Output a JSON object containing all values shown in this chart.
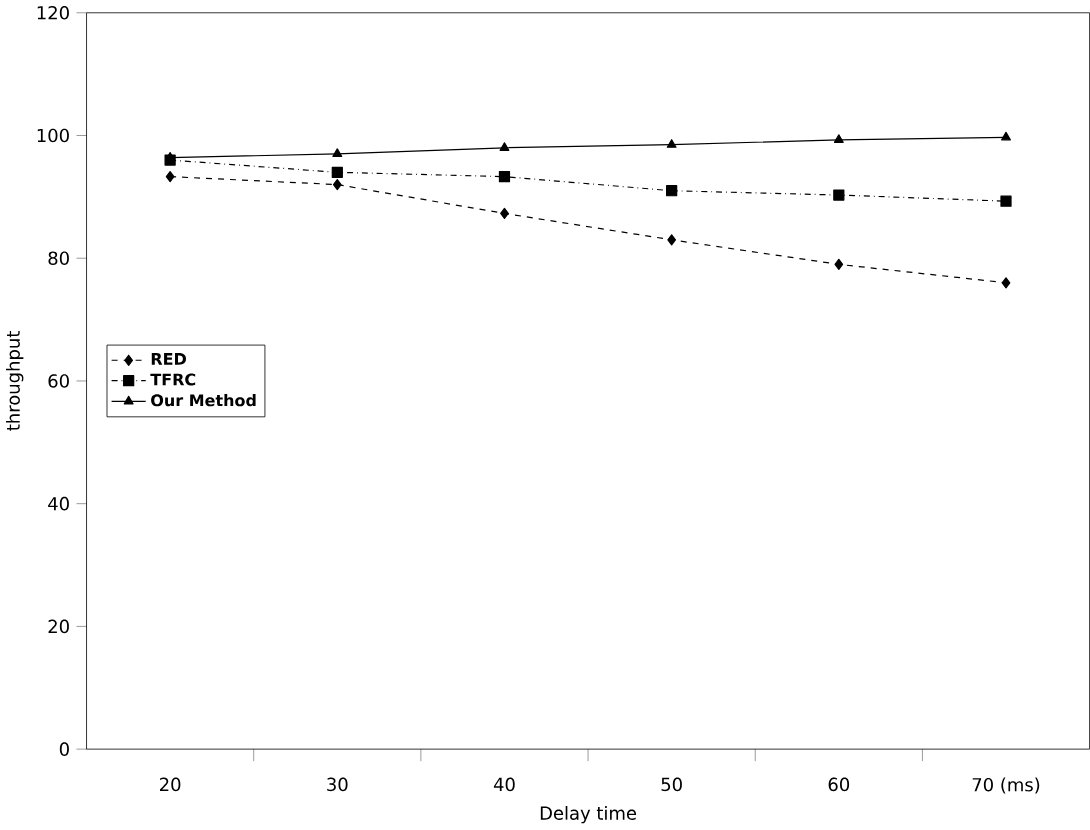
{
  "chart_data": {
    "type": "line",
    "xlabel": "Delay time",
    "ylabel": "throughput",
    "categories": [
      "20",
      "30",
      "40",
      "50",
      "60",
      "70 (ms)"
    ],
    "ylim": [
      0,
      120
    ],
    "yticks": [
      0,
      20,
      40,
      60,
      80,
      100,
      120
    ],
    "grid": false,
    "legend": "left",
    "series": [
      {
        "name": "RED",
        "color": "#000000",
        "marker": "diamond",
        "line_style": "dashed",
        "values": [
          93.3,
          92,
          87.3,
          83,
          79,
          76
        ]
      },
      {
        "name": "TFRC",
        "color": "#000000",
        "marker": "square",
        "line_style": "dashdot",
        "values": [
          96,
          94,
          93.3,
          91,
          90.3,
          89.3
        ]
      },
      {
        "name": "Our Method",
        "color": "#000000",
        "marker": "triangle",
        "line_style": "solid",
        "values": [
          96.4,
          97,
          98,
          98.5,
          99.3,
          99.7
        ]
      }
    ]
  }
}
